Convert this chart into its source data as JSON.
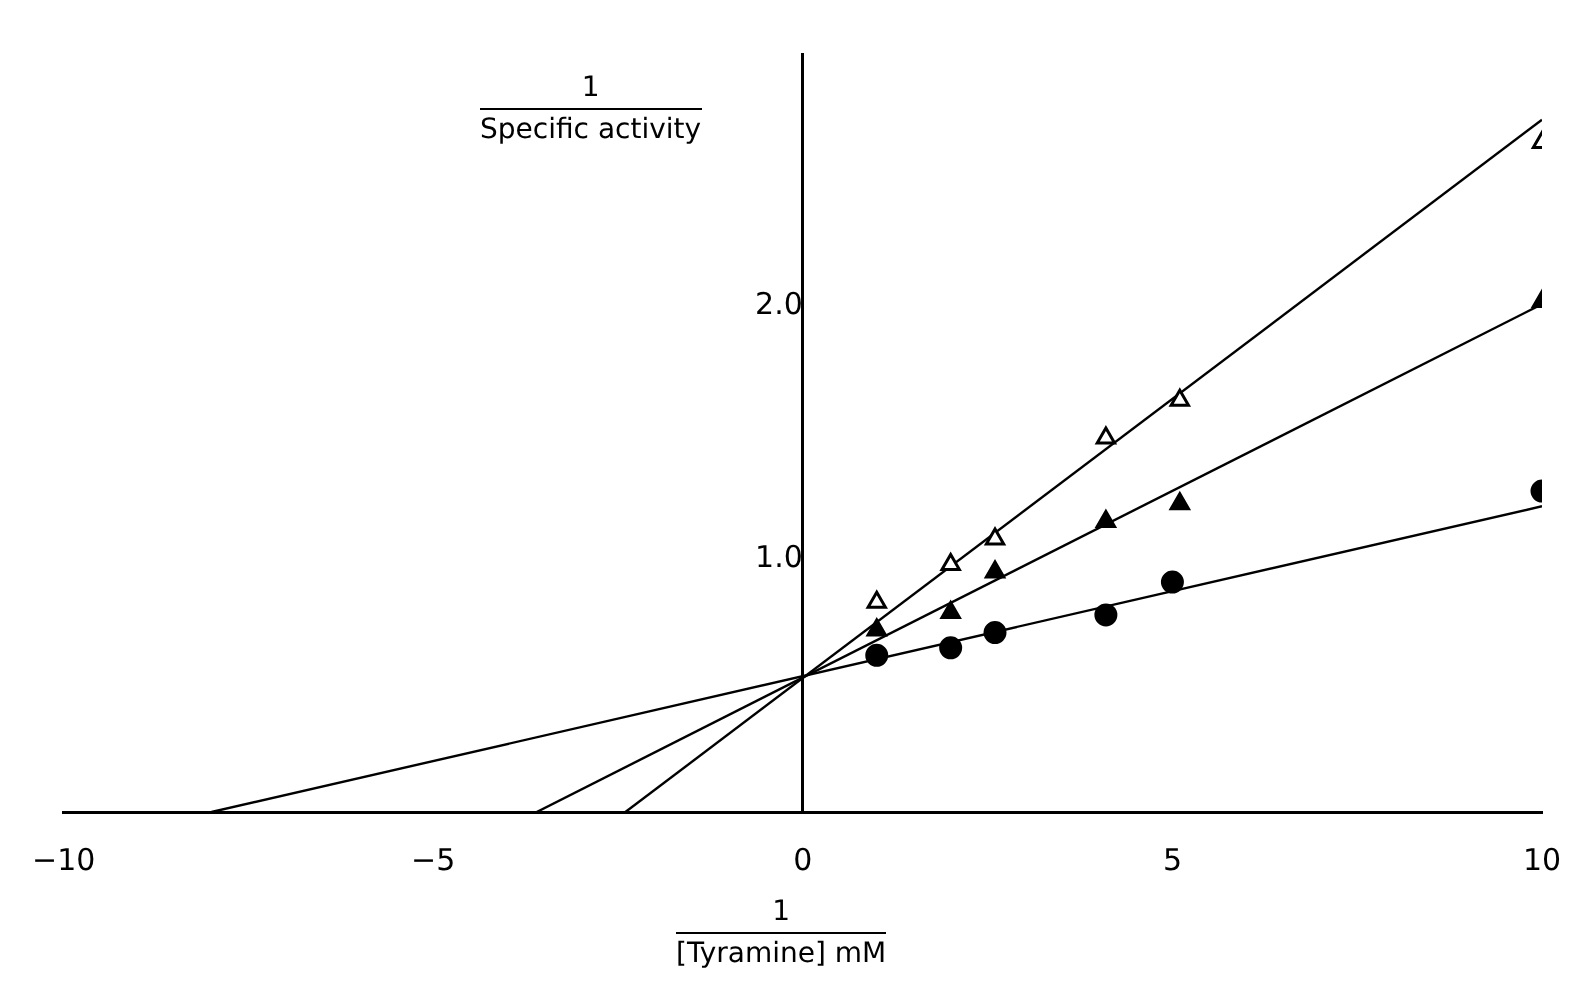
{
  "chart_data": {
    "type": "scatter",
    "xlabel": "[Tyramine] mM",
    "ylabel": "Specific activity",
    "annotations": [
      "1",
      "1"
    ],
    "xlim": [
      -10,
      10
    ],
    "ylim": [
      0,
      3.0
    ],
    "xticks": [
      {
        "value": -10,
        "label": "−10"
      },
      {
        "value": -5,
        "label": "−5"
      },
      0,
      5,
      10
    ],
    "yticks": [
      {
        "value": 1,
        "label": "1.0"
      },
      {
        "value": 2,
        "label": "2.0"
      }
    ],
    "grid": false,
    "legend": false,
    "series": [
      {
        "color": "#ffffff",
        "marker": "triangle",
        "x": [
          1,
          2,
          2.6,
          4.1,
          5.1,
          10
        ],
        "values": [
          0.83,
          0.98,
          1.08,
          1.48,
          1.63,
          2.65
        ]
      },
      {
        "color": "#000000",
        "marker": "triangle",
        "x": [
          1,
          2,
          2.6,
          4.1,
          5.1,
          10
        ],
        "values": [
          0.72,
          0.79,
          0.95,
          1.15,
          1.22,
          2.02
        ]
      },
      {
        "color": "#000000",
        "marker": "circle",
        "x": [
          1,
          2,
          2.6,
          4.1,
          5,
          10
        ],
        "values": [
          0.62,
          0.65,
          0.71,
          0.78,
          0.91,
          1.27
        ]
      },
      {
        "type": "line",
        "color": "#000000",
        "marker": "none",
        "x": [
          -2.4,
          10
        ],
        "values": [
          0,
          2.74
        ]
      },
      {
        "type": "line",
        "color": "#000000",
        "marker": "none",
        "x": [
          -3.6,
          10
        ],
        "values": [
          0,
          2.01
        ]
      },
      {
        "type": "line",
        "color": "#000000",
        "marker": "none",
        "x": [
          -8.0,
          10
        ],
        "values": [
          0,
          1.21
        ]
      }
    ]
  }
}
